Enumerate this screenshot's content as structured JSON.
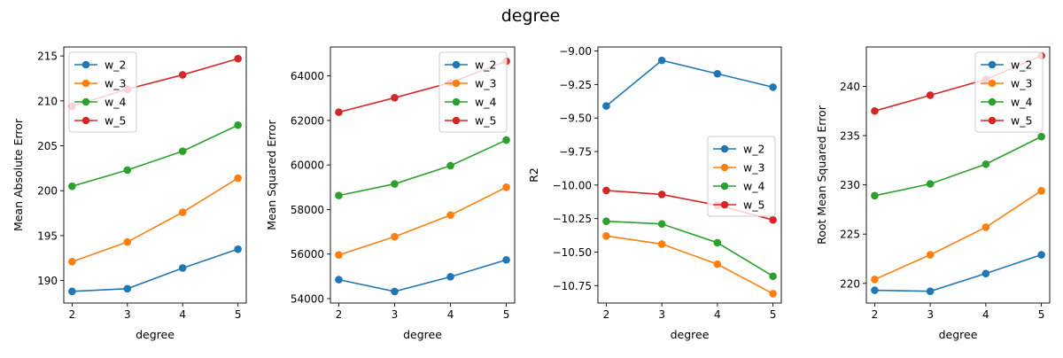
{
  "suptitle": "degree",
  "chart_data": [
    {
      "type": "line",
      "xlabel": "degree",
      "ylabel": "Mean Absolute Error",
      "x": [
        2,
        3,
        4,
        5
      ],
      "xticks": [
        "2",
        "3",
        "4",
        "5"
      ],
      "ylim": [
        187.5,
        216
      ],
      "yticks": [
        "190",
        "195",
        "200",
        "205",
        "210",
        "215"
      ],
      "legend_position": "upper-left",
      "series": [
        {
          "name": "w_2",
          "color": "#1f77b4",
          "values": [
            188.8,
            189.1,
            191.4,
            193.5
          ]
        },
        {
          "name": "w_3",
          "color": "#ff7f0e",
          "values": [
            192.1,
            194.3,
            197.6,
            201.4
          ]
        },
        {
          "name": "w_4",
          "color": "#2ca02c",
          "values": [
            200.5,
            202.3,
            204.4,
            207.3
          ]
        },
        {
          "name": "w_5",
          "color": "#d62728",
          "values": [
            209.4,
            211.3,
            212.9,
            214.7
          ]
        }
      ]
    },
    {
      "type": "line",
      "xlabel": "degree",
      "ylabel": "Mean Squared Error",
      "x": [
        2,
        3,
        4,
        5
      ],
      "xticks": [
        "2",
        "3",
        "4",
        "5"
      ],
      "ylim": [
        53800,
        65300
      ],
      "yticks": [
        "54000",
        "56000",
        "58000",
        "60000",
        "62000",
        "64000"
      ],
      "legend_position": "upper-right",
      "series": [
        {
          "name": "w_2",
          "color": "#1f77b4",
          "values": [
            54850,
            54320,
            54980,
            55740
          ]
        },
        {
          "name": "w_3",
          "color": "#ff7f0e",
          "values": [
            55960,
            56780,
            57750,
            59000
          ]
        },
        {
          "name": "w_4",
          "color": "#2ca02c",
          "values": [
            58630,
            59150,
            59970,
            61120
          ]
        },
        {
          "name": "w_5",
          "color": "#d62728",
          "values": [
            62370,
            63020,
            63700,
            64660
          ]
        }
      ]
    },
    {
      "type": "line",
      "xlabel": "degree",
      "ylabel": "R2",
      "x": [
        2,
        3,
        4,
        5
      ],
      "xticks": [
        "2",
        "3",
        "4",
        "5"
      ],
      "ylim": [
        -10.88,
        -8.97
      ],
      "yticks": [
        "−9.00",
        "−9.25",
        "−9.50",
        "−9.75",
        "−10.00",
        "−10.25",
        "−10.50",
        "−10.75"
      ],
      "ytick_values": [
        -9.0,
        -9.25,
        -9.5,
        -9.75,
        -10.0,
        -10.25,
        -10.5,
        -10.75
      ],
      "legend_position": "center-right",
      "series": [
        {
          "name": "w_2",
          "color": "#1f77b4",
          "values": [
            -9.41,
            -9.07,
            -9.17,
            -9.27
          ]
        },
        {
          "name": "w_3",
          "color": "#ff7f0e",
          "values": [
            -10.38,
            -10.44,
            -10.59,
            -10.81
          ]
        },
        {
          "name": "w_4",
          "color": "#2ca02c",
          "values": [
            -10.27,
            -10.29,
            -10.43,
            -10.68
          ]
        },
        {
          "name": "w_5",
          "color": "#d62728",
          "values": [
            -10.04,
            -10.07,
            -10.15,
            -10.26
          ]
        }
      ]
    },
    {
      "type": "line",
      "xlabel": "degree",
      "ylabel": "Root Mean Squared Error",
      "x": [
        2,
        3,
        4,
        5
      ],
      "xticks": [
        "2",
        "3",
        "4",
        "5"
      ],
      "ylim": [
        218,
        244
      ],
      "yticks": [
        "220",
        "225",
        "230",
        "235",
        "240"
      ],
      "legend_position": "upper-right",
      "series": [
        {
          "name": "w_2",
          "color": "#1f77b4",
          "values": [
            219.3,
            219.2,
            221.0,
            222.9
          ]
        },
        {
          "name": "w_3",
          "color": "#ff7f0e",
          "values": [
            220.4,
            222.9,
            225.7,
            229.4
          ]
        },
        {
          "name": "w_4",
          "color": "#2ca02c",
          "values": [
            228.9,
            230.1,
            232.1,
            234.9
          ]
        },
        {
          "name": "w_5",
          "color": "#d62728",
          "values": [
            237.5,
            239.1,
            240.7,
            243.1
          ]
        }
      ]
    }
  ]
}
